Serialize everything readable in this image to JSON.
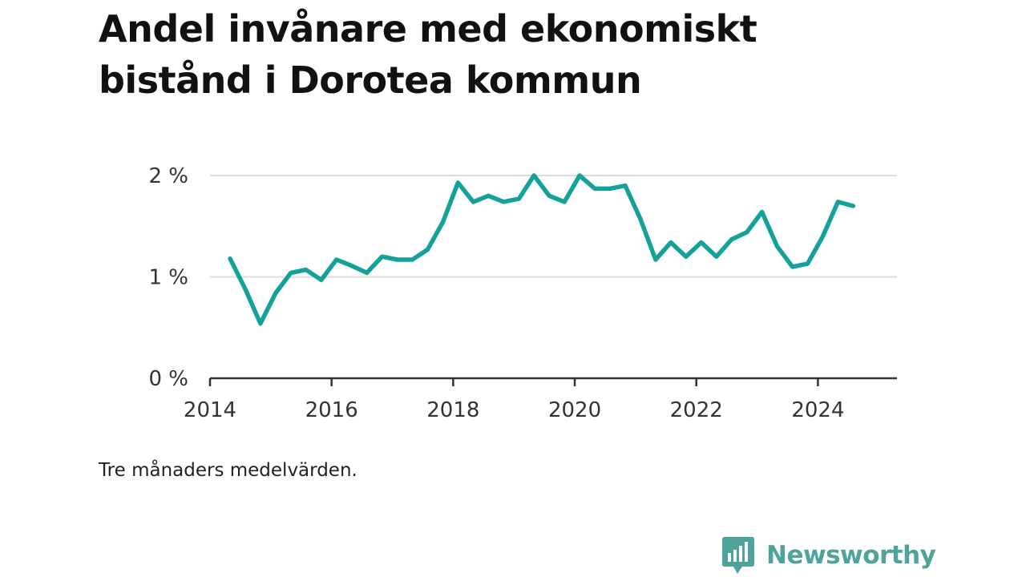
{
  "title": "Andel invånare med ekonomiskt bistånd i Dorotea kommun",
  "note": "Tre månaders medelvärden.",
  "brand": {
    "name": "Newsworthy",
    "icon": "bar-chart-speech-bubble-icon",
    "color": "#4ea39b"
  },
  "colors": {
    "line": "#14a19a",
    "grid": "#dddddd",
    "axis": "#333333"
  },
  "chart_data": {
    "type": "line",
    "title": "Andel invånare med ekonomiskt bistånd i Dorotea kommun",
    "xlabel": "",
    "ylabel": "",
    "xlim": [
      2014.0,
      2025.3
    ],
    "ylim": [
      0,
      2
    ],
    "x_ticks": [
      2014,
      2016,
      2018,
      2020,
      2022,
      2024
    ],
    "y_ticks": [
      0,
      1,
      2
    ],
    "y_tick_labels": [
      "0 %",
      "1 %",
      "2 %"
    ],
    "grid": "horizontal",
    "legend": "none",
    "series": [
      {
        "x": [
          2014.33,
          2014.58,
          2014.83,
          2015.08,
          2015.33,
          2015.58,
          2015.83,
          2016.08,
          2016.33,
          2016.58,
          2016.83,
          2017.08,
          2017.33,
          2017.58,
          2017.83,
          2018.08,
          2018.33,
          2018.58,
          2018.83,
          2019.08,
          2019.33,
          2019.58,
          2019.83,
          2020.08,
          2020.33,
          2020.58,
          2020.83,
          2021.08,
          2021.33,
          2021.58,
          2021.83,
          2022.08,
          2022.33,
          2022.58,
          2022.83,
          2023.08,
          2023.33,
          2023.58,
          2023.83,
          2024.08,
          2024.33,
          2024.58
        ],
        "y": [
          1.18,
          0.88,
          0.54,
          0.84,
          1.04,
          1.07,
          0.97,
          1.17,
          1.11,
          1.04,
          1.2,
          1.17,
          1.17,
          1.27,
          1.54,
          1.93,
          1.74,
          1.8,
          1.74,
          1.77,
          2.0,
          1.8,
          1.74,
          2.0,
          1.87,
          1.87,
          1.9,
          1.57,
          1.17,
          1.34,
          1.2,
          1.34,
          1.2,
          1.37,
          1.44,
          1.64,
          1.3,
          1.1,
          1.13,
          1.4,
          1.74,
          1.7
        ]
      }
    ]
  }
}
